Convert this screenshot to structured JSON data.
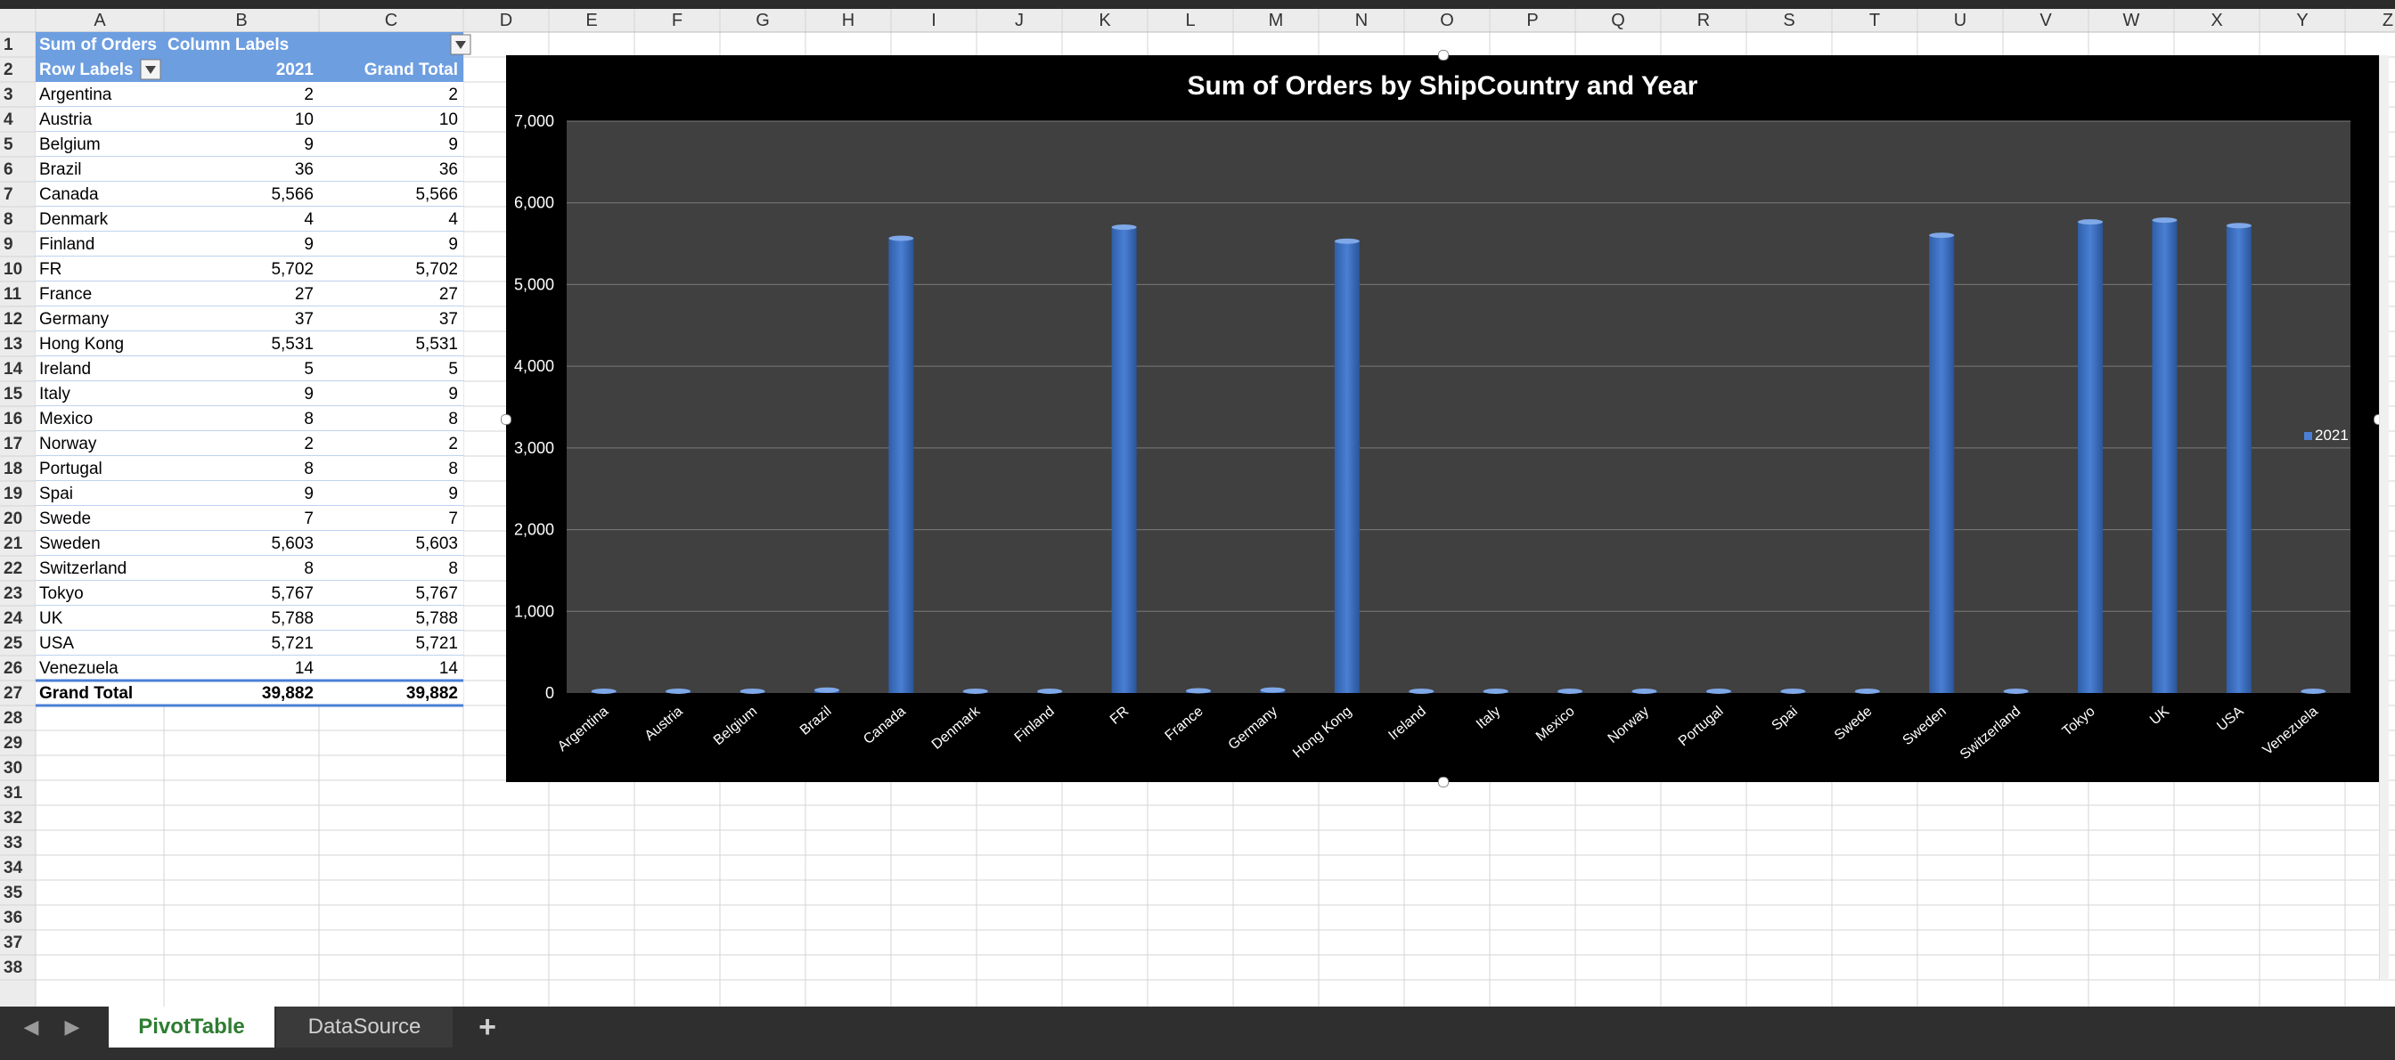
{
  "spreadsheet": {
    "columns": [
      "A",
      "B",
      "C",
      "D",
      "E",
      "F",
      "G",
      "H",
      "I",
      "J",
      "K",
      "L",
      "M",
      "N",
      "O",
      "P",
      "Q",
      "R",
      "S",
      "T",
      "U",
      "V",
      "W",
      "X",
      "Y",
      "Z"
    ],
    "rows": [
      "1",
      "2",
      "3",
      "4",
      "5",
      "6",
      "7",
      "8",
      "9",
      "10",
      "11",
      "12",
      "13",
      "14",
      "15",
      "16",
      "17",
      "18",
      "19",
      "20",
      "21",
      "22",
      "23",
      "24",
      "25",
      "26",
      "27",
      "28",
      "29",
      "30",
      "31",
      "32",
      "33",
      "34",
      "35",
      "36",
      "37",
      "38"
    ]
  },
  "pivot": {
    "header_value_label": "Sum of Orders",
    "header_column_labels": "Column Labels",
    "header_row_labels": "Row Labels",
    "header_year": "2021",
    "header_grand_total": "Grand Total",
    "rows": [
      {
        "label": "Argentina",
        "value": "2",
        "total": "2"
      },
      {
        "label": "Austria",
        "value": "10",
        "total": "10"
      },
      {
        "label": "Belgium",
        "value": "9",
        "total": "9"
      },
      {
        "label": "Brazil",
        "value": "36",
        "total": "36"
      },
      {
        "label": "Canada",
        "value": "5,566",
        "total": "5,566"
      },
      {
        "label": "Denmark",
        "value": "4",
        "total": "4"
      },
      {
        "label": "Finland",
        "value": "9",
        "total": "9"
      },
      {
        "label": "FR",
        "value": "5,702",
        "total": "5,702"
      },
      {
        "label": "France",
        "value": "27",
        "total": "27"
      },
      {
        "label": "Germany",
        "value": "37",
        "total": "37"
      },
      {
        "label": "Hong Kong",
        "value": "5,531",
        "total": "5,531"
      },
      {
        "label": "Ireland",
        "value": "5",
        "total": "5"
      },
      {
        "label": "Italy",
        "value": "9",
        "total": "9"
      },
      {
        "label": "Mexico",
        "value": "8",
        "total": "8"
      },
      {
        "label": "Norway",
        "value": "2",
        "total": "2"
      },
      {
        "label": "Portugal",
        "value": "8",
        "total": "8"
      },
      {
        "label": "Spai",
        "value": "9",
        "total": "9"
      },
      {
        "label": "Swede",
        "value": "7",
        "total": "7"
      },
      {
        "label": "Sweden",
        "value": "5,603",
        "total": "5,603"
      },
      {
        "label": "Switzerland",
        "value": "8",
        "total": "8"
      },
      {
        "label": "Tokyo",
        "value": "5,767",
        "total": "5,767"
      },
      {
        "label": "UK",
        "value": "5,788",
        "total": "5,788"
      },
      {
        "label": "USA",
        "value": "5,721",
        "total": "5,721"
      },
      {
        "label": "Venezuela",
        "value": "14",
        "total": "14"
      }
    ],
    "grand_total_label": "Grand Total",
    "grand_total_value": "39,882",
    "grand_total_total": "39,882"
  },
  "chart_data": {
    "type": "bar",
    "title": "Sum of Orders by ShipCountry and Year",
    "categories": [
      "Argentina",
      "Austria",
      "Belgium",
      "Brazil",
      "Canada",
      "Denmark",
      "Finland",
      "FR",
      "France",
      "Germany",
      "Hong Kong",
      "Ireland",
      "Italy",
      "Mexico",
      "Norway",
      "Portugal",
      "Spai",
      "Swede",
      "Sweden",
      "Switzerland",
      "Tokyo",
      "UK",
      "USA",
      "Venezuela"
    ],
    "series": [
      {
        "name": "2021",
        "values": [
          2,
          10,
          9,
          36,
          5566,
          4,
          9,
          5702,
          27,
          37,
          5531,
          5,
          9,
          8,
          2,
          8,
          9,
          7,
          5603,
          8,
          5767,
          5788,
          5721,
          14
        ]
      }
    ],
    "y_ticks": [
      "0",
      "1,000",
      "2,000",
      "3,000",
      "4,000",
      "5,000",
      "6,000",
      "7,000"
    ],
    "ylim": [
      0,
      7000
    ],
    "grid": true,
    "legend": "right",
    "colors": {
      "bar": "#4a7fd4",
      "plot_bg": "#404040",
      "chart_bg": "#000000",
      "gridline": "#7a7a7a",
      "text": "#ffffff"
    }
  },
  "sheets": {
    "tabs": [
      {
        "label": "PivotTable",
        "active": true
      },
      {
        "label": "DataSource",
        "active": false
      }
    ],
    "add_label": "+",
    "prev_icon": "chevron-left-icon",
    "next_icon": "chevron-right-icon"
  }
}
